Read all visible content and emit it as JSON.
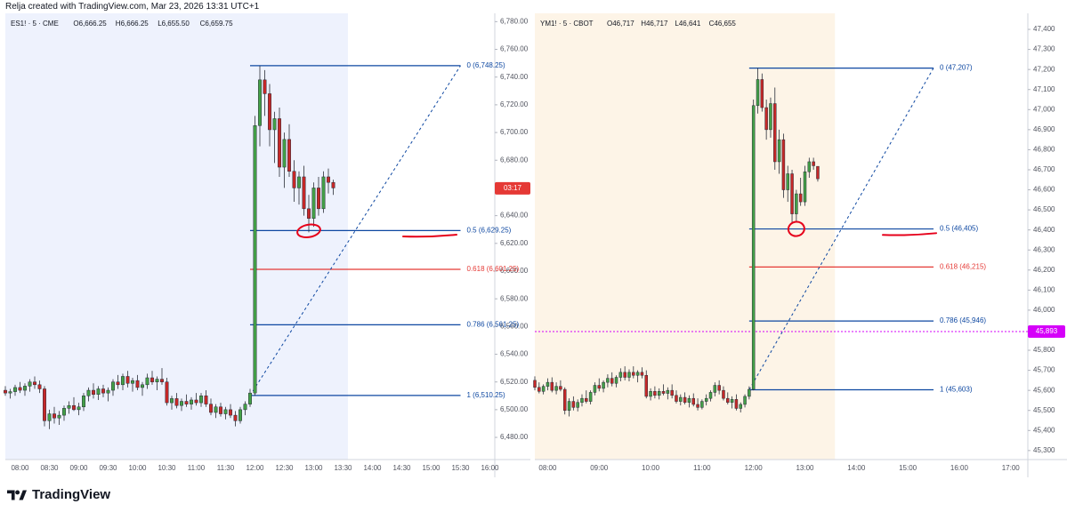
{
  "header": {
    "text": "Relja created with TradingView.com, Mar 23, 2026 13:31 UTC+1"
  },
  "branding": {
    "logo_text": "TradingView",
    "icon": "tradingview-logo-icon"
  },
  "colors": {
    "up": "#43a047",
    "down": "#c62828",
    "fib_blue": "#0d47a1",
    "fib_red": "#e53935",
    "left_session_bg": "#eef2fd",
    "right_session_bg": "#fdf4e7",
    "price_tag": "#e53935",
    "alert_line": "#d500f9",
    "circle_mark": "#e6001a"
  },
  "chart_data": [
    {
      "type": "candlestick",
      "symbol_line": "ES1! · 5 · CME",
      "ohlc": {
        "O": "6,666.25",
        "H": "6,666.25",
        "L": "6,655.50",
        "C": "6,659.75"
      },
      "interval_minutes": 5,
      "xlim": [
        "07:45",
        "16:05"
      ],
      "ylim": [
        6464,
        6786
      ],
      "session_shading": [
        "07:45",
        "13:35"
      ],
      "y_ticks": [
        "6,780.00",
        "6,760.00",
        "6,740.00",
        "6,720.00",
        "6,700.00",
        "6,680.00",
        "6,660.00",
        "6,640.00",
        "6,620.00",
        "6,600.00",
        "6,580.00",
        "6,560.00",
        "6,540.00",
        "6,520.00",
        "6,500.00",
        "6,480.00"
      ],
      "x_ticks": [
        "08:00",
        "08:30",
        "09:00",
        "09:30",
        "10:00",
        "10:30",
        "11:00",
        "11:30",
        "12:00",
        "12:30",
        "13:00",
        "13:30",
        "14:00",
        "14:30",
        "15:00",
        "15:30",
        "16:00"
      ],
      "price_tag": "03:17",
      "price_tag_value": 6659.75,
      "fib": {
        "start": "11:55",
        "end": "15:30",
        "diagonal_from": 6510.25,
        "diagonal_to": 6748.25,
        "levels": [
          {
            "label": "0 (6,748.25)",
            "value": 6748.25,
            "color": "#0d47a1"
          },
          {
            "label": "0.5 (6,629.25)",
            "value": 6629.25,
            "color": "#0d47a1"
          },
          {
            "label": "0.618 (6,601.25)",
            "value": 6601.25,
            "color": "#e53935"
          },
          {
            "label": "0.786 (6,561.25)",
            "value": 6561.25,
            "color": "#0d47a1"
          },
          {
            "label": "1 (6,510.25)",
            "value": 6510.25,
            "color": "#0d47a1"
          }
        ]
      },
      "circle_mark": {
        "time": "12:55",
        "value": 6629
      },
      "underline_mark": {
        "time": "14:35",
        "value": 6625
      },
      "candles": [
        [
          "07:45",
          6514,
          6517,
          6510,
          6512
        ],
        [
          "07:50",
          6512,
          6515,
          6508,
          6513
        ],
        [
          "07:55",
          6513,
          6518,
          6510,
          6516
        ],
        [
          "08:00",
          6516,
          6520,
          6512,
          6514
        ],
        [
          "08:05",
          6514,
          6519,
          6510,
          6517
        ],
        [
          "08:10",
          6517,
          6522,
          6513,
          6520
        ],
        [
          "08:15",
          6520,
          6524,
          6515,
          6518
        ],
        [
          "08:20",
          6518,
          6521,
          6512,
          6515
        ],
        [
          "08:25",
          6515,
          6517,
          6488,
          6492
        ],
        [
          "08:30",
          6492,
          6500,
          6486,
          6497
        ],
        [
          "08:35",
          6497,
          6502,
          6490,
          6494
        ],
        [
          "08:40",
          6494,
          6499,
          6489,
          6496
        ],
        [
          "08:45",
          6496,
          6503,
          6492,
          6501
        ],
        [
          "08:50",
          6501,
          6506,
          6497,
          6503
        ],
        [
          "08:55",
          6503,
          6509,
          6499,
          6500
        ],
        [
          "09:00",
          6500,
          6505,
          6496,
          6502
        ],
        [
          "09:05",
          6502,
          6512,
          6499,
          6510
        ],
        [
          "09:10",
          6510,
          6516,
          6506,
          6514
        ],
        [
          "09:15",
          6514,
          6519,
          6508,
          6511
        ],
        [
          "09:20",
          6511,
          6517,
          6507,
          6515
        ],
        [
          "09:25",
          6515,
          6518,
          6509,
          6512
        ],
        [
          "09:30",
          6512,
          6516,
          6506,
          6514
        ],
        [
          "09:35",
          6514,
          6522,
          6510,
          6520
        ],
        [
          "09:40",
          6520,
          6525,
          6515,
          6518
        ],
        [
          "09:45",
          6518,
          6526,
          6514,
          6524
        ],
        [
          "09:50",
          6524,
          6528,
          6516,
          6519
        ],
        [
          "09:55",
          6519,
          6523,
          6513,
          6521
        ],
        [
          "10:00",
          6521,
          6525,
          6514,
          6516
        ],
        [
          "10:05",
          6516,
          6520,
          6510,
          6518
        ],
        [
          "10:10",
          6518,
          6526,
          6515,
          6523
        ],
        [
          "10:15",
          6523,
          6528,
          6518,
          6520
        ],
        [
          "10:20",
          6520,
          6524,
          6514,
          6522
        ],
        [
          "10:25",
          6522,
          6530,
          6518,
          6520
        ],
        [
          "10:30",
          6520,
          6523,
          6503,
          6505
        ],
        [
          "10:35",
          6505,
          6510,
          6500,
          6508
        ],
        [
          "10:40",
          6508,
          6512,
          6501,
          6503
        ],
        [
          "10:45",
          6503,
          6508,
          6499,
          6506
        ],
        [
          "10:50",
          6506,
          6511,
          6502,
          6504
        ],
        [
          "10:55",
          6504,
          6509,
          6500,
          6507
        ],
        [
          "11:00",
          6507,
          6512,
          6503,
          6505
        ],
        [
          "11:05",
          6505,
          6512,
          6502,
          6510
        ],
        [
          "11:10",
          6510,
          6514,
          6502,
          6504
        ],
        [
          "11:15",
          6504,
          6508,
          6496,
          6498
        ],
        [
          "11:20",
          6498,
          6504,
          6494,
          6502
        ],
        [
          "11:25",
          6502,
          6505,
          6495,
          6497
        ],
        [
          "11:30",
          6497,
          6502,
          6493,
          6500
        ],
        [
          "11:35",
          6500,
          6504,
          6494,
          6496
        ],
        [
          "11:40",
          6496,
          6499,
          6488,
          6492
        ],
        [
          "11:45",
          6492,
          6502,
          6490,
          6500
        ],
        [
          "11:50",
          6500,
          6506,
          6496,
          6504
        ],
        [
          "11:55",
          6504,
          6515,
          6502,
          6512
        ],
        [
          "12:00",
          6512,
          6712,
          6510,
          6705
        ],
        [
          "12:05",
          6705,
          6748,
          6690,
          6738
        ],
        [
          "12:10",
          6738,
          6745,
          6712,
          6728
        ],
        [
          "12:15",
          6728,
          6735,
          6690,
          6702
        ],
        [
          "12:20",
          6702,
          6715,
          6678,
          6710
        ],
        [
          "12:25",
          6710,
          6718,
          6668,
          6675
        ],
        [
          "12:30",
          6675,
          6700,
          6660,
          6695
        ],
        [
          "12:35",
          6695,
          6706,
          6668,
          6672
        ],
        [
          "12:40",
          6672,
          6680,
          6650,
          6660
        ],
        [
          "12:45",
          6660,
          6672,
          6648,
          6668
        ],
        [
          "12:50",
          6668,
          6676,
          6640,
          6645
        ],
        [
          "12:55",
          6645,
          6655,
          6628,
          6638
        ],
        [
          "13:00",
          6638,
          6664,
          6632,
          6660
        ],
        [
          "13:05",
          6660,
          6668,
          6640,
          6645
        ],
        [
          "13:10",
          6645,
          6672,
          6642,
          6668
        ],
        [
          "13:15",
          6668,
          6674,
          6656,
          6664
        ],
        [
          "13:20",
          6664,
          6666,
          6655,
          6660
        ]
      ]
    },
    {
      "type": "candlestick",
      "symbol_line": "YM1! · 5 · CBOT",
      "ohlc": {
        "O": "46,717",
        "H": "46,717",
        "L": "46,641",
        "C": "46,655"
      },
      "interval_minutes": 5,
      "xlim": [
        "07:45",
        "17:20"
      ],
      "ylim": [
        45255,
        47480
      ],
      "session_shading": [
        "07:45",
        "13:35"
      ],
      "y_ticks": [
        "47,400",
        "47,300",
        "47,200",
        "47,100",
        "47,000",
        "46,900",
        "46,800",
        "46,700",
        "46,600",
        "46,500",
        "46,400",
        "46,300",
        "46,200",
        "46,100",
        "46,000",
        "45,900",
        "45,800",
        "45,700",
        "45,600",
        "45,500",
        "45,400",
        "45,300"
      ],
      "x_ticks": [
        "08:00",
        "09:00",
        "10:00",
        "11:00",
        "12:00",
        "13:00",
        "14:00",
        "15:00",
        "16:00",
        "17:00"
      ],
      "price_tag": "45,893",
      "price_tag_value": 45893,
      "alert_line": 45893,
      "fib": {
        "start": "11:55",
        "end": "15:30",
        "diagonal_from": 45603,
        "diagonal_to": 47207,
        "levels": [
          {
            "label": "0 (47,207)",
            "value": 47207,
            "color": "#0d47a1"
          },
          {
            "label": "0.5 (46,405)",
            "value": 46405,
            "color": "#0d47a1"
          },
          {
            "label": "0.618 (46,215)",
            "value": 46215,
            "color": "#e53935"
          },
          {
            "label": "0.786 (45,946)",
            "value": 45946,
            "color": "#0d47a1"
          },
          {
            "label": "1 (45,603)",
            "value": 45603,
            "color": "#0d47a1"
          }
        ]
      },
      "circle_mark": {
        "time": "12:50",
        "value": 46405
      },
      "underline_mark": {
        "time": "14:35",
        "value": 46375
      },
      "candles": [
        [
          "07:45",
          45650,
          45670,
          45600,
          45615
        ],
        [
          "07:50",
          45615,
          45640,
          45585,
          45595
        ],
        [
          "07:55",
          45595,
          45630,
          45580,
          45620
        ],
        [
          "08:00",
          45620,
          45660,
          45600,
          45640
        ],
        [
          "08:05",
          45640,
          45665,
          45590,
          45600
        ],
        [
          "08:10",
          45600,
          45640,
          45580,
          45620
        ],
        [
          "08:15",
          45620,
          45650,
          45595,
          45605
        ],
        [
          "08:20",
          45605,
          45615,
          45480,
          45500
        ],
        [
          "08:25",
          45500,
          45560,
          45470,
          45545
        ],
        [
          "08:30",
          45545,
          45570,
          45500,
          45515
        ],
        [
          "08:35",
          45515,
          45555,
          45495,
          45540
        ],
        [
          "08:40",
          45540,
          45580,
          45520,
          45560
        ],
        [
          "08:45",
          45560,
          45600,
          45535,
          45545
        ],
        [
          "08:50",
          45545,
          45600,
          45530,
          45590
        ],
        [
          "08:55",
          45590,
          45640,
          45575,
          45625
        ],
        [
          "09:00",
          45625,
          45660,
          45595,
          45610
        ],
        [
          "09:05",
          45610,
          45650,
          45590,
          45640
        ],
        [
          "09:10",
          45640,
          45680,
          45615,
          45660
        ],
        [
          "09:15",
          45660,
          45690,
          45620,
          45635
        ],
        [
          "09:20",
          45635,
          45675,
          45615,
          45665
        ],
        [
          "09:25",
          45665,
          45710,
          45645,
          45690
        ],
        [
          "09:30",
          45690,
          45720,
          45650,
          45665
        ],
        [
          "09:35",
          45665,
          45705,
          45645,
          45690
        ],
        [
          "09:40",
          45690,
          45720,
          45660,
          45675
        ],
        [
          "09:45",
          45675,
          45700,
          45640,
          45690
        ],
        [
          "09:50",
          45690,
          45715,
          45660,
          45675
        ],
        [
          "09:55",
          45675,
          45700,
          45560,
          45570
        ],
        [
          "10:00",
          45570,
          45610,
          45550,
          45595
        ],
        [
          "10:05",
          45595,
          45620,
          45560,
          45575
        ],
        [
          "10:10",
          45575,
          45610,
          45555,
          45595
        ],
        [
          "10:15",
          45595,
          45630,
          45575,
          45585
        ],
        [
          "10:20",
          45585,
          45615,
          45555,
          45600
        ],
        [
          "10:25",
          45600,
          45630,
          45560,
          45575
        ],
        [
          "10:30",
          45575,
          45600,
          45535,
          45545
        ],
        [
          "10:35",
          45545,
          45580,
          45525,
          45565
        ],
        [
          "10:40",
          45565,
          45590,
          45530,
          45540
        ],
        [
          "10:45",
          45540,
          45575,
          45515,
          45560
        ],
        [
          "10:50",
          45560,
          45585,
          45520,
          45530
        ],
        [
          "10:55",
          45530,
          45560,
          45500,
          45515
        ],
        [
          "11:00",
          45515,
          45555,
          45505,
          45545
        ],
        [
          "11:05",
          45545,
          45580,
          45525,
          45560
        ],
        [
          "11:10",
          45560,
          45600,
          45545,
          45590
        ],
        [
          "11:15",
          45590,
          45640,
          45570,
          45625
        ],
        [
          "11:20",
          45625,
          45650,
          45580,
          45600
        ],
        [
          "11:25",
          45600,
          45620,
          45550,
          45560
        ],
        [
          "11:30",
          45560,
          45590,
          45530,
          45540
        ],
        [
          "11:35",
          45540,
          45570,
          45510,
          45555
        ],
        [
          "11:40",
          45555,
          45580,
          45500,
          45510
        ],
        [
          "11:45",
          45510,
          45540,
          45490,
          45530
        ],
        [
          "11:50",
          45530,
          45580,
          45515,
          45570
        ],
        [
          "11:55",
          45570,
          45620,
          45555,
          45605
        ],
        [
          "12:00",
          45605,
          47050,
          45600,
          47020
        ],
        [
          "12:05",
          47020,
          47207,
          46980,
          47150
        ],
        [
          "12:10",
          47150,
          47180,
          46990,
          47010
        ],
        [
          "12:15",
          47010,
          47050,
          46850,
          46900
        ],
        [
          "12:20",
          46900,
          47060,
          46860,
          47030
        ],
        [
          "12:25",
          47030,
          47110,
          46700,
          46740
        ],
        [
          "12:30",
          46740,
          46900,
          46680,
          46850
        ],
        [
          "12:35",
          46850,
          46880,
          46560,
          46600
        ],
        [
          "12:40",
          46600,
          46720,
          46540,
          46680
        ],
        [
          "12:45",
          46680,
          46700,
          46430,
          46480
        ],
        [
          "12:50",
          46480,
          46600,
          46440,
          46580
        ],
        [
          "12:55",
          46580,
          46660,
          46520,
          46540
        ],
        [
          "13:00",
          46540,
          46720,
          46520,
          46690
        ],
        [
          "13:05",
          46690,
          46760,
          46660,
          46740
        ],
        [
          "13:10",
          46740,
          46760,
          46700,
          46720
        ],
        [
          "13:15",
          46717,
          46717,
          46641,
          46655
        ]
      ]
    }
  ]
}
